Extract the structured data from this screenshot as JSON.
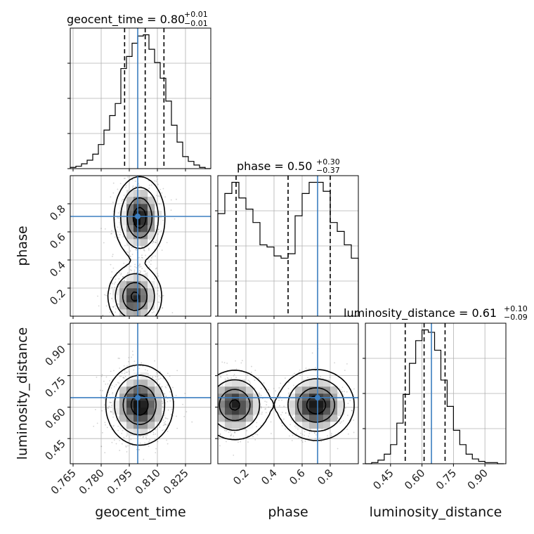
{
  "colors": {
    "truth": "#3c7ec0",
    "hist": "#000000",
    "density": "#3c3c3c"
  },
  "chart_data": {
    "type": "corner",
    "parameters": [
      "geocent_time",
      "phase",
      "luminosity_distance"
    ],
    "titles": [
      {
        "text": "geocent_time = 0.80",
        "upper": "+0.01",
        "lower": "−0.01"
      },
      {
        "text": "phase = 0.50",
        "upper": "+0.30",
        "lower": "−0.37"
      },
      {
        "text": "luminosity_distance = 0.61",
        "upper": "+0.10",
        "lower": "−0.09"
      }
    ],
    "ranges": [
      [
        0.7635,
        0.8385
      ],
      [
        0.0,
        1.0
      ],
      [
        0.33,
        1.0
      ]
    ],
    "ticks": [
      [
        "0.765",
        "0.780",
        "0.795",
        "0.810",
        "0.825"
      ],
      [
        "0.2",
        "0.4",
        "0.6",
        "0.8"
      ],
      [
        "0.45",
        "0.60",
        "0.75",
        "0.90"
      ]
    ],
    "truths": [
      0.7995,
      0.71,
      0.645
    ],
    "quantiles": [
      [
        0.7925,
        0.8035,
        0.8135
      ],
      [
        0.13,
        0.5,
        0.8
      ],
      [
        0.52,
        0.61,
        0.71
      ]
    ],
    "grid": true,
    "histograms": [
      {
        "bin_edges": [
          0.7635,
          0.7665,
          0.7695,
          0.7725,
          0.7755,
          0.7785,
          0.7815,
          0.7845,
          0.7875,
          0.7905,
          0.7935,
          0.7965,
          0.7995,
          0.8025,
          0.8055,
          0.8085,
          0.8115,
          0.8145,
          0.8175,
          0.8205,
          0.8235,
          0.8265,
          0.8295,
          0.8325,
          0.8355,
          0.8385
        ],
        "counts": [
          1,
          2,
          4,
          7,
          12,
          20,
          32,
          44,
          54,
          83,
          93,
          104,
          110,
          111,
          99,
          88,
          75,
          56,
          36,
          22,
          10,
          6,
          3,
          1,
          0
        ]
      },
      {
        "bin_edges": [
          0.0,
          0.05,
          0.1,
          0.15,
          0.2,
          0.25,
          0.3,
          0.35,
          0.4,
          0.45,
          0.5,
          0.55,
          0.6,
          0.65,
          0.7,
          0.75,
          0.8,
          0.85,
          0.9,
          0.95,
          1.0
        ],
        "counts": [
          46,
          55,
          60,
          53,
          48,
          42,
          32,
          31,
          27,
          26,
          28,
          45,
          55,
          60,
          60,
          56,
          42,
          38,
          32,
          26
        ]
      },
      {
        "bin_edges": [
          0.33,
          0.36,
          0.39,
          0.42,
          0.45,
          0.48,
          0.51,
          0.54,
          0.57,
          0.6,
          0.63,
          0.66,
          0.69,
          0.72,
          0.75,
          0.78,
          0.81,
          0.84,
          0.87,
          0.9,
          0.93,
          0.96,
          0.99
        ],
        "counts": [
          0,
          1,
          3,
          8,
          16,
          34,
          58,
          84,
          103,
          112,
          110,
          95,
          70,
          48,
          28,
          16,
          8,
          4,
          2,
          1,
          1,
          0
        ]
      }
    ],
    "density_2d": [
      {
        "x": 0,
        "y": 1,
        "modes": [
          {
            "cx": 0.8005,
            "cy": 0.7,
            "sx": 0.006,
            "sy": 0.13,
            "w": 1.0
          },
          {
            "cx": 0.798,
            "cy": 0.14,
            "sx": 0.0065,
            "sy": 0.1,
            "w": 0.9
          }
        ]
      },
      {
        "x": 0,
        "y": 2,
        "modes": [
          {
            "cx": 0.8005,
            "cy": 0.61,
            "sx": 0.008,
            "sy": 0.085,
            "w": 1.0
          }
        ]
      },
      {
        "x": 1,
        "y": 2,
        "modes": [
          {
            "cx": 0.12,
            "cy": 0.61,
            "sx": 0.11,
            "sy": 0.075,
            "w": 0.9
          },
          {
            "cx": 0.7,
            "cy": 0.61,
            "sx": 0.12,
            "sy": 0.075,
            "w": 1.0
          }
        ]
      }
    ],
    "contour_levels": [
      0.85,
      0.55,
      0.25,
      0.08
    ]
  }
}
